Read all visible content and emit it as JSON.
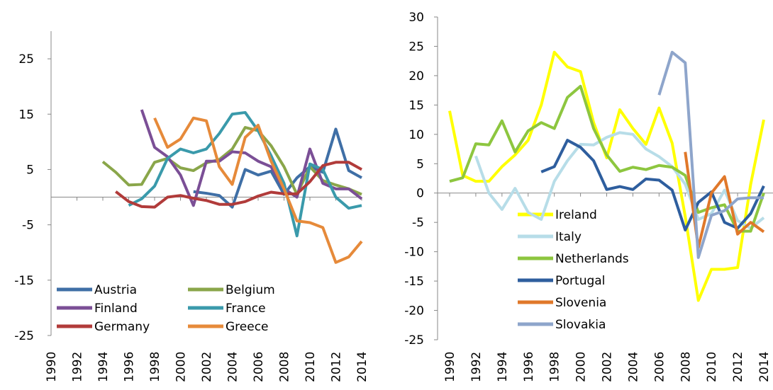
{
  "chart_data": [
    {
      "type": "line",
      "x": [
        1990,
        1991,
        1992,
        1993,
        1994,
        1995,
        1996,
        1997,
        1998,
        1999,
        2000,
        2001,
        2002,
        2003,
        2004,
        2005,
        2006,
        2007,
        2008,
        2009,
        2010,
        2011,
        2012,
        2013,
        2014
      ],
      "xlim": [
        1990,
        2014
      ],
      "xticks": [
        1990,
        1992,
        1994,
        1996,
        1998,
        2000,
        2002,
        2004,
        2006,
        2008,
        2010,
        2012,
        2014
      ],
      "ylim": [
        -25,
        30
      ],
      "yticks": [
        -25,
        -15,
        -5,
        5,
        15,
        25
      ],
      "legend": "lower left",
      "series": [
        {
          "name": "Austria",
          "color": "#3f6fa6",
          "values": [
            null,
            null,
            null,
            null,
            null,
            null,
            null,
            null,
            null,
            null,
            null,
            1,
            0.7,
            0.3,
            -1.8,
            5,
            4,
            4.7,
            0.5,
            3.5,
            5.5,
            4.5,
            12.3,
            4.8,
            3.5
          ]
        },
        {
          "name": "Belgium",
          "color": "#8aa64a",
          "values": [
            null,
            null,
            null,
            null,
            6.4,
            4.5,
            2.2,
            2.3,
            6.3,
            7,
            5.3,
            4.8,
            6.2,
            6.8,
            8.7,
            12.6,
            12,
            9.3,
            5.5,
            0.5,
            5.5,
            3,
            2.2,
            1.5,
            0.5
          ]
        },
        {
          "name": "Finland",
          "color": "#7b4f96",
          "values": [
            null,
            null,
            null,
            null,
            null,
            null,
            null,
            15.8,
            9,
            7.3,
            4,
            -1.5,
            6.5,
            6.5,
            8.2,
            8,
            6.5,
            5.5,
            1.5,
            0,
            8.7,
            2.5,
            1.5,
            1.5,
            -0.3
          ]
        },
        {
          "name": "France",
          "color": "#3a9aab",
          "values": [
            null,
            null,
            null,
            null,
            null,
            null,
            -1.5,
            -0.3,
            2,
            7,
            8.7,
            8,
            8.7,
            11.5,
            15,
            15.3,
            12,
            7.5,
            2.5,
            -7,
            6,
            5,
            0,
            -2,
            -1.5
          ]
        },
        {
          "name": "Germany",
          "color": "#b13b3a",
          "values": [
            null,
            null,
            null,
            null,
            null,
            1,
            -0.8,
            -1.7,
            -1.8,
            0,
            0.3,
            -0.2,
            -0.6,
            -1.3,
            -1.3,
            -0.8,
            0.2,
            0.9,
            0.6,
            0.6,
            2.8,
            5.7,
            6.3,
            6.3,
            5
          ]
        },
        {
          "name": "Greece",
          "color": "#e68a3a",
          "values": [
            null,
            null,
            null,
            null,
            null,
            null,
            null,
            null,
            14.3,
            9,
            10.5,
            14.3,
            13.8,
            5.5,
            2.3,
            10.8,
            13,
            6.5,
            1.5,
            -4.3,
            -4.6,
            -5.5,
            -11.8,
            -10.8,
            -8
          ]
        }
      ]
    },
    {
      "type": "line",
      "x": [
        1990,
        1991,
        1992,
        1993,
        1994,
        1995,
        1996,
        1997,
        1998,
        1999,
        2000,
        2001,
        2002,
        2003,
        2004,
        2005,
        2006,
        2007,
        2008,
        2009,
        2010,
        2011,
        2012,
        2013,
        2014
      ],
      "xlim": [
        1990,
        2014
      ],
      "xticks": [
        1990,
        1992,
        1994,
        1996,
        1998,
        2000,
        2002,
        2004,
        2006,
        2008,
        2010,
        2012,
        2014
      ],
      "ylim": [
        -25,
        30
      ],
      "yticks": [
        -25,
        -20,
        -15,
        -10,
        -5,
        0,
        5,
        10,
        15,
        20,
        25,
        30
      ],
      "legend": "center",
      "series": [
        {
          "name": "Ireland",
          "color": "#ffff00",
          "values": [
            14,
            3,
            2,
            2,
            4.5,
            6.5,
            9,
            15,
            24,
            21.5,
            20.7,
            12,
            6,
            14.2,
            11,
            8.3,
            14.5,
            8.5,
            -4,
            -18.3,
            -13,
            -13,
            -12.7,
            1.5,
            12.5
          ]
        },
        {
          "name": "Italy",
          "color": "#b7dde8",
          "values": [
            null,
            null,
            6.3,
            0,
            -2.8,
            0.8,
            -3.3,
            -4.5,
            2,
            5.5,
            8.3,
            8.2,
            9.5,
            10.3,
            10,
            7.5,
            6.2,
            4.5,
            1.5,
            -4.5,
            -3.5,
            0.5,
            -4.7,
            -6,
            -4.2
          ]
        },
        {
          "name": "Netherlands",
          "color": "#8dc63f",
          "values": [
            2,
            2.6,
            8.4,
            8.2,
            12.3,
            7,
            10.6,
            12,
            11,
            16.3,
            18.2,
            11,
            6.5,
            3.7,
            4.4,
            4,
            4.7,
            4.4,
            3,
            -3.3,
            -2.5,
            -2,
            -6.5,
            -6.5,
            0
          ]
        },
        {
          "name": "Portugal",
          "color": "#2e5e9e",
          "values": [
            null,
            null,
            null,
            null,
            null,
            null,
            null,
            3.6,
            4.5,
            9,
            7.8,
            5.5,
            0.6,
            1.1,
            0.6,
            2.4,
            2.2,
            0.5,
            -6.3,
            -1.6,
            0.2,
            -5,
            -6,
            -3.5,
            1.2
          ]
        },
        {
          "name": "Slovenia",
          "color": "#e0782a",
          "values": [
            null,
            null,
            null,
            null,
            null,
            null,
            null,
            null,
            null,
            null,
            null,
            null,
            null,
            null,
            null,
            null,
            null,
            null,
            7,
            -9.3,
            0,
            2.8,
            -7,
            -5,
            -6.6
          ]
        },
        {
          "name": "Slovakia",
          "color": "#8ea5cb",
          "values": [
            null,
            null,
            null,
            null,
            null,
            null,
            null,
            null,
            null,
            null,
            null,
            null,
            null,
            null,
            null,
            null,
            16.7,
            24,
            22.2,
            -11,
            -3.8,
            -3,
            -1,
            -0.8,
            -0.8
          ]
        }
      ]
    }
  ]
}
